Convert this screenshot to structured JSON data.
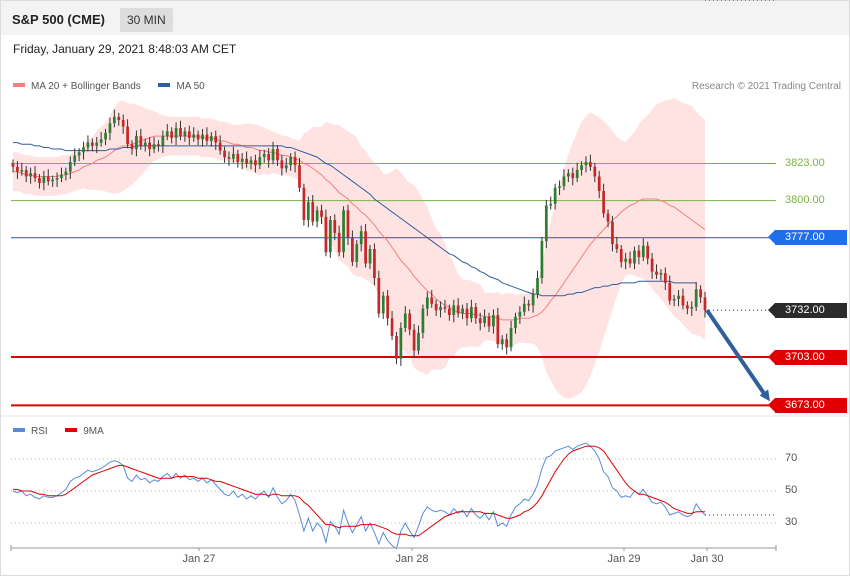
{
  "header": {
    "symbol": "S&P 500 (CME)",
    "interval": "30 MIN",
    "datetime": "Friday, January 29, 2021 8:48:03 AM CET",
    "credit": "Research © 2021 Trading Central"
  },
  "legend": {
    "ma20_label": "MA 20 + Bollinger Bands",
    "ma20_color": "#f08080",
    "ma50_label": "MA 50",
    "ma50_color": "#2f5f9e"
  },
  "rsi_legend": {
    "rsi_label": "RSI",
    "rsi_color": "#5b8ad8",
    "ma9_label": "9MA",
    "ma9_color": "#e00000"
  },
  "levels": [
    {
      "value": 3823.0,
      "label": "3823.00",
      "kind": "resistance",
      "color": "#7cb342"
    },
    {
      "value": 3800.0,
      "label": "3800.00",
      "kind": "resistance",
      "color": "#7cb342"
    },
    {
      "value": 3777.0,
      "label": "3777.00",
      "kind": "pivot",
      "color": "#1e6fe8"
    },
    {
      "value": 3732.0,
      "label": "3732.00",
      "kind": "last",
      "color": "#2b2b2b"
    },
    {
      "value": 3703.0,
      "label": "3703.00",
      "kind": "support",
      "color": "#e00000"
    },
    {
      "value": 3673.0,
      "label": "3673.00",
      "kind": "support",
      "color": "#e00000"
    }
  ],
  "x_axis": {
    "labels": [
      "Jan 27",
      "Jan 28",
      "Jan 29",
      "Jan 30"
    ]
  },
  "rsi_axis": {
    "ticks": [
      70,
      50,
      30
    ]
  },
  "chart_data": {
    "type": "candlestick",
    "close": [
      3821,
      3818,
      3819,
      3815,
      3817,
      3814,
      3811,
      3815,
      3812,
      3813,
      3814,
      3816,
      3818,
      3824,
      3828,
      3830,
      3833,
      3836,
      3834,
      3836,
      3838,
      3842,
      3848,
      3852,
      3850,
      3846,
      3835,
      3832,
      3840,
      3834,
      3836,
      3832,
      3835,
      3834,
      3840,
      3843,
      3839,
      3845,
      3840,
      3843,
      3839,
      3841,
      3838,
      3841,
      3837,
      3840,
      3836,
      3831,
      3827,
      3826,
      3829,
      3824,
      3826,
      3823,
      3825,
      3822,
      3827,
      3829,
      3825,
      3832,
      3825,
      3820,
      3822,
      3827,
      3822,
      3808,
      3788,
      3799,
      3787,
      3794,
      3790,
      3768,
      3788,
      3780,
      3768,
      3794,
      3777,
      3762,
      3773,
      3781,
      3761,
      3770,
      3752,
      3730,
      3741,
      3727,
      3716,
      3702,
      3721,
      3730,
      3720,
      3707,
      3718,
      3733,
      3740,
      3736,
      3732,
      3734,
      3733,
      3729,
      3735,
      3730,
      3733,
      3727,
      3734,
      3727,
      3724,
      3728,
      3722,
      3729,
      3711,
      3714,
      3709,
      3721,
      3728,
      3731,
      3736,
      3735,
      3742,
      3752,
      3775,
      3797,
      3798,
      3808,
      3809,
      3815,
      3817,
      3814,
      3819,
      3822,
      3824,
      3821,
      3815,
      3806,
      3792,
      3787,
      3773,
      3770,
      3762,
      3764,
      3761,
      3769,
      3765,
      3772,
      3764,
      3756,
      3754,
      3755,
      3749,
      3738,
      3739,
      3741,
      3735,
      3733,
      3734,
      3745,
      3740,
      3732
    ],
    "ma20": [
      3818,
      3818,
      3817,
      3816,
      3816,
      3815,
      3815,
      3815,
      3815,
      3815,
      3815,
      3816,
      3816,
      3817,
      3818,
      3819,
      3821,
      3822,
      3823,
      3825,
      3826,
      3827,
      3829,
      3831,
      3833,
      3834,
      3834,
      3835,
      3836,
      3837,
      3838,
      3839,
      3840,
      3840,
      3840,
      3840,
      3840,
      3840,
      3840,
      3840,
      3840,
      3840,
      3840,
      3839,
      3839,
      3839,
      3838,
      3837,
      3837,
      3836,
      3835,
      3835,
      3834,
      3833,
      3833,
      3832,
      3831,
      3831,
      3830,
      3830,
      3829,
      3828,
      3828,
      3827,
      3826,
      3825,
      3823,
      3822,
      3820,
      3818,
      3816,
      3813,
      3811,
      3808,
      3805,
      3803,
      3801,
      3798,
      3796,
      3793,
      3791,
      3788,
      3785,
      3781,
      3778,
      3775,
      3771,
      3767,
      3763,
      3760,
      3757,
      3753,
      3750,
      3747,
      3744,
      3742,
      3739,
      3737,
      3735,
      3734,
      3732,
      3731,
      3730,
      3730,
      3730,
      3729,
      3729,
      3728,
      3728,
      3728,
      3727,
      3726,
      3726,
      3726,
      3726,
      3727,
      3727,
      3727,
      3728,
      3729,
      3731,
      3734,
      3738,
      3741,
      3745,
      3749,
      3753,
      3757,
      3761,
      3765,
      3769,
      3773,
      3776,
      3779,
      3782,
      3785,
      3788,
      3790,
      3793,
      3795,
      3797,
      3798,
      3800,
      3801,
      3801,
      3801,
      3801,
      3800,
      3799,
      3797,
      3796,
      3794,
      3792,
      3790,
      3788,
      3786,
      3784,
      3782
    ],
    "ma50": [
      3836,
      3836,
      3835,
      3835,
      3835,
      3834,
      3834,
      3833,
      3833,
      3832,
      3832,
      3832,
      3831,
      3831,
      3831,
      3831,
      3831,
      3831,
      3831,
      3831,
      3831,
      3831,
      3832,
      3832,
      3832,
      3833,
      3833,
      3833,
      3834,
      3834,
      3834,
      3834,
      3834,
      3834,
      3834,
      3834,
      3834,
      3834,
      3834,
      3834,
      3834,
      3834,
      3834,
      3834,
      3834,
      3834,
      3834,
      3834,
      3834,
      3834,
      3834,
      3834,
      3834,
      3834,
      3834,
      3834,
      3834,
      3834,
      3834,
      3834,
      3834,
      3834,
      3833,
      3833,
      3832,
      3831,
      3830,
      3829,
      3828,
      3827,
      3825,
      3823,
      3822,
      3820,
      3818,
      3816,
      3814,
      3812,
      3810,
      3808,
      3806,
      3804,
      3801,
      3799,
      3797,
      3795,
      3793,
      3791,
      3789,
      3787,
      3785,
      3783,
      3781,
      3779,
      3777,
      3775,
      3773,
      3771,
      3769,
      3767,
      3766,
      3764,
      3762,
      3761,
      3759,
      3758,
      3756,
      3755,
      3753,
      3752,
      3751,
      3749,
      3748,
      3747,
      3746,
      3745,
      3744,
      3743,
      3742,
      3742,
      3741,
      3741,
      3741,
      3741,
      3741,
      3741,
      3742,
      3742,
      3743,
      3743,
      3744,
      3745,
      3746,
      3746,
      3747,
      3747,
      3748,
      3748,
      3749,
      3749,
      3749,
      3749,
      3750,
      3750,
      3750,
      3750,
      3750,
      3750,
      3750,
      3750,
      3749,
      3749,
      3749,
      3749,
      3749,
      3749
    ],
    "rsi": [
      50,
      49,
      50,
      47,
      48,
      46,
      45,
      47,
      46,
      46,
      47,
      49,
      51,
      56,
      58,
      59,
      61,
      63,
      62,
      63,
      64,
      66,
      68,
      69,
      68,
      66,
      58,
      56,
      60,
      57,
      58,
      55,
      57,
      56,
      59,
      61,
      58,
      61,
      58,
      60,
      57,
      58,
      56,
      58,
      55,
      57,
      54,
      51,
      48,
      47,
      50,
      46,
      48,
      45,
      47,
      45,
      48,
      50,
      46,
      52,
      46,
      42,
      44,
      48,
      44,
      35,
      25,
      33,
      25,
      30,
      27,
      18,
      31,
      28,
      23,
      38,
      30,
      24,
      29,
      34,
      25,
      30,
      24,
      17,
      24,
      19,
      16,
      14,
      25,
      30,
      25,
      21,
      28,
      36,
      40,
      38,
      37,
      38,
      37,
      35,
      39,
      36,
      38,
      34,
      39,
      35,
      33,
      36,
      32,
      37,
      28,
      30,
      28,
      35,
      40,
      42,
      45,
      44,
      48,
      54,
      64,
      71,
      72,
      75,
      76,
      77,
      78,
      76,
      78,
      79,
      80,
      78,
      75,
      70,
      62,
      59,
      52,
      50,
      46,
      47,
      46,
      50,
      48,
      51,
      47,
      43,
      42,
      43,
      40,
      35,
      36,
      37,
      35,
      34,
      35,
      42,
      38,
      35
    ],
    "rsi_ma9": [
      51,
      51,
      50,
      50,
      50,
      49,
      48,
      48,
      47,
      47,
      47,
      47,
      48,
      50,
      52,
      54,
      56,
      58,
      60,
      61,
      62,
      63,
      64,
      65,
      66,
      66,
      65,
      64,
      63,
      62,
      61,
      60,
      59,
      58,
      58,
      58,
      58,
      59,
      59,
      59,
      59,
      59,
      58,
      58,
      58,
      57,
      56,
      56,
      55,
      54,
      53,
      52,
      51,
      50,
      49,
      48,
      48,
      48,
      47,
      48,
      48,
      47,
      47,
      47,
      47,
      46,
      43,
      41,
      38,
      35,
      32,
      29,
      29,
      28,
      27,
      28,
      28,
      28,
      28,
      29,
      29,
      29,
      29,
      28,
      27,
      26,
      24,
      23,
      23,
      23,
      22,
      22,
      22,
      24,
      26,
      28,
      30,
      32,
      34,
      35,
      36,
      37,
      37,
      37,
      37,
      37,
      37,
      36,
      36,
      36,
      35,
      34,
      33,
      33,
      34,
      35,
      37,
      38,
      40,
      43,
      47,
      52,
      57,
      62,
      66,
      70,
      73,
      75,
      76,
      77,
      78,
      78,
      78,
      77,
      75,
      71,
      67,
      63,
      59,
      55,
      52,
      50,
      48,
      48,
      47,
      46,
      45,
      44,
      43,
      41,
      39,
      38,
      37,
      36,
      36,
      37,
      37,
      37
    ]
  }
}
